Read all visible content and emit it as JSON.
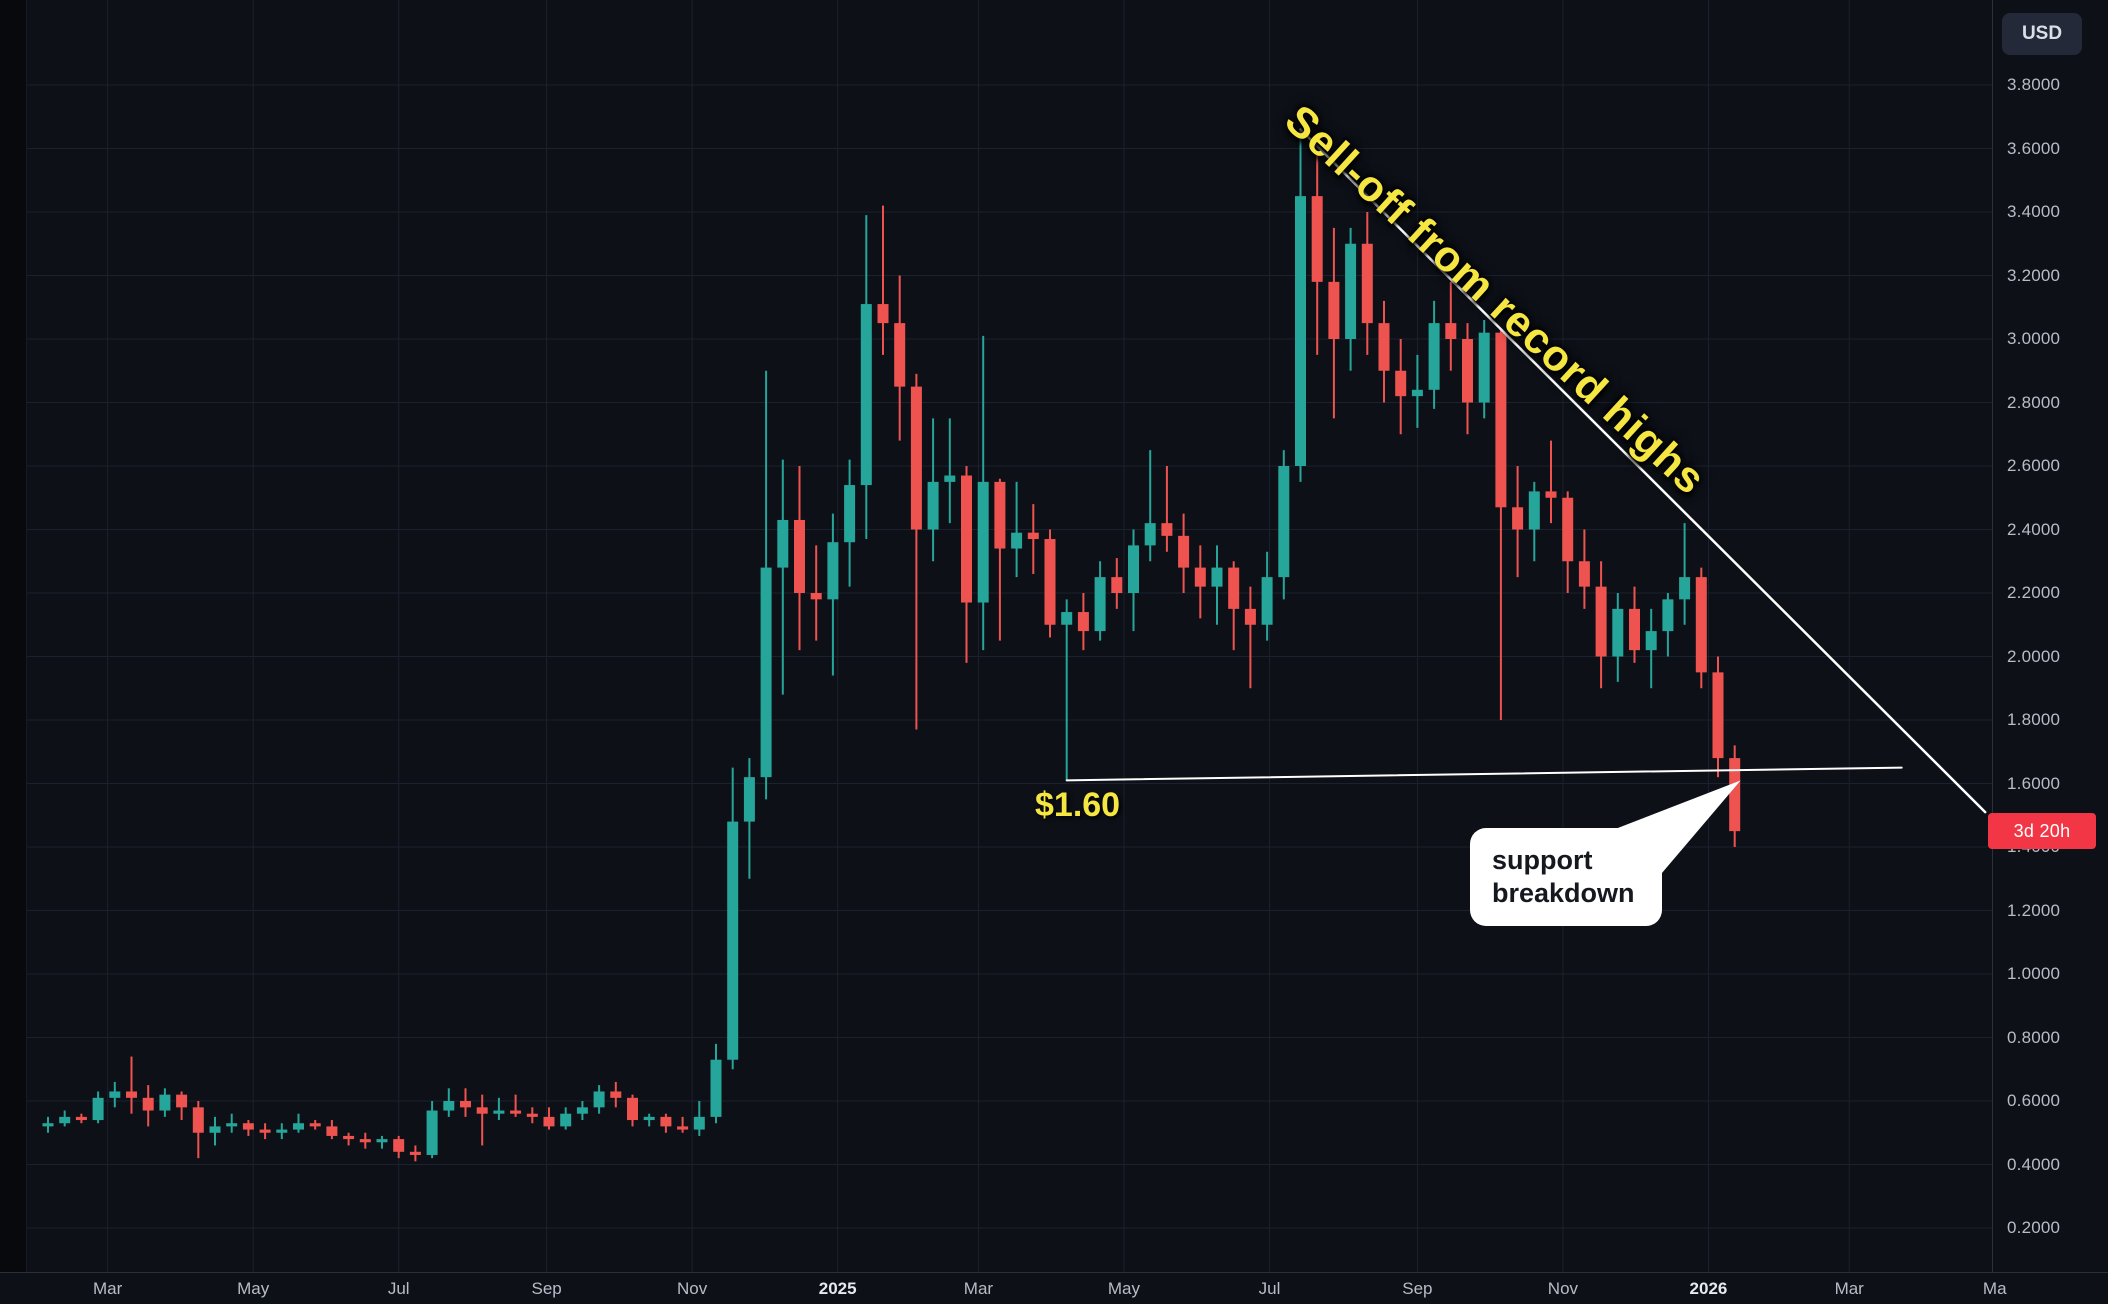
{
  "colors": {
    "background": "#0d1017",
    "grid": "#1b212e",
    "up": "#26a69a",
    "down": "#ef5350",
    "drawing_line": "#ffffff",
    "annotation_yellow": "#f5e642",
    "badge_red": "#f23645",
    "axis_text": "#b7bcc8",
    "callout_bg": "#ffffff",
    "callout_text": "#15181e"
  },
  "price_axis": {
    "currency_button": "USD",
    "labels": [
      "3.8000",
      "3.6000",
      "3.4000",
      "3.2000",
      "3.0000",
      "2.8000",
      "2.6000",
      "2.4000",
      "2.2000",
      "2.0000",
      "1.8000",
      "1.6000",
      "1.4000",
      "1.2000",
      "1.0000",
      "0.8000",
      "0.6000",
      "0.4000",
      "0.2000"
    ],
    "countdown_badge": {
      "text": "3d 20h",
      "price": 1.45
    }
  },
  "time_axis": {
    "labels": [
      {
        "text": "Mar",
        "date": "2024-03-01"
      },
      {
        "text": "May",
        "date": "2024-05-01"
      },
      {
        "text": "Jul",
        "date": "2024-07-01"
      },
      {
        "text": "Sep",
        "date": "2024-09-01"
      },
      {
        "text": "Nov",
        "date": "2024-11-01"
      },
      {
        "text": "2025",
        "date": "2025-01-01",
        "emphasis": true
      },
      {
        "text": "Mar",
        "date": "2025-03-01"
      },
      {
        "text": "May",
        "date": "2025-05-01"
      },
      {
        "text": "Jul",
        "date": "2025-07-01"
      },
      {
        "text": "Sep",
        "date": "2025-09-01"
      },
      {
        "text": "Nov",
        "date": "2025-11-01"
      },
      {
        "text": "2026",
        "date": "2026-01-01",
        "emphasis": true
      },
      {
        "text": "Mar",
        "date": "2026-03-01"
      },
      {
        "text": "Ma",
        "date": "2026-05-01"
      }
    ]
  },
  "annotations": {
    "selloff": {
      "text": "Sell-off from record highs",
      "color": "#f5e642"
    },
    "support_label": {
      "text": "$1.60",
      "color": "#f5e642"
    },
    "callout": {
      "line1": "support",
      "line2": "breakdown"
    }
  },
  "chart_data": {
    "type": "candlestick",
    "currency": "USD",
    "interval": "weekly",
    "start_date": "2024-02-05",
    "interval_days": 7,
    "visible_price_range": [
      0.2,
      3.8
    ],
    "candle_format": [
      "date",
      "open",
      "high",
      "low",
      "close"
    ],
    "candles": [
      [
        "2024-02-05",
        0.52,
        0.55,
        0.5,
        0.53
      ],
      [
        "2024-02-12",
        0.53,
        0.57,
        0.52,
        0.55
      ],
      [
        "2024-02-19",
        0.55,
        0.56,
        0.53,
        0.54
      ],
      [
        "2024-02-26",
        0.54,
        0.63,
        0.53,
        0.61
      ],
      [
        "2024-03-04",
        0.61,
        0.66,
        0.58,
        0.63
      ],
      [
        "2024-03-11",
        0.63,
        0.74,
        0.56,
        0.61
      ],
      [
        "2024-03-18",
        0.61,
        0.65,
        0.52,
        0.57
      ],
      [
        "2024-03-25",
        0.57,
        0.64,
        0.55,
        0.62
      ],
      [
        "2024-04-01",
        0.62,
        0.63,
        0.54,
        0.58
      ],
      [
        "2024-04-08",
        0.58,
        0.6,
        0.42,
        0.5
      ],
      [
        "2024-04-15",
        0.5,
        0.55,
        0.46,
        0.52
      ],
      [
        "2024-04-22",
        0.52,
        0.56,
        0.5,
        0.53
      ],
      [
        "2024-04-29",
        0.53,
        0.54,
        0.49,
        0.51
      ],
      [
        "2024-05-06",
        0.51,
        0.53,
        0.48,
        0.5
      ],
      [
        "2024-05-13",
        0.5,
        0.53,
        0.48,
        0.51
      ],
      [
        "2024-05-20",
        0.51,
        0.56,
        0.5,
        0.53
      ],
      [
        "2024-05-27",
        0.53,
        0.54,
        0.51,
        0.52
      ],
      [
        "2024-06-03",
        0.52,
        0.54,
        0.48,
        0.49
      ],
      [
        "2024-06-10",
        0.49,
        0.5,
        0.46,
        0.48
      ],
      [
        "2024-06-17",
        0.48,
        0.5,
        0.45,
        0.47
      ],
      [
        "2024-06-24",
        0.47,
        0.49,
        0.45,
        0.48
      ],
      [
        "2024-07-01",
        0.48,
        0.49,
        0.42,
        0.44
      ],
      [
        "2024-07-08",
        0.44,
        0.46,
        0.41,
        0.43
      ],
      [
        "2024-07-15",
        0.43,
        0.6,
        0.42,
        0.57
      ],
      [
        "2024-07-22",
        0.57,
        0.64,
        0.55,
        0.6
      ],
      [
        "2024-07-29",
        0.6,
        0.64,
        0.55,
        0.58
      ],
      [
        "2024-08-05",
        0.58,
        0.62,
        0.46,
        0.56
      ],
      [
        "2024-08-12",
        0.56,
        0.61,
        0.54,
        0.57
      ],
      [
        "2024-08-19",
        0.57,
        0.62,
        0.55,
        0.56
      ],
      [
        "2024-08-26",
        0.56,
        0.58,
        0.53,
        0.55
      ],
      [
        "2024-09-02",
        0.55,
        0.58,
        0.51,
        0.52
      ],
      [
        "2024-09-09",
        0.52,
        0.58,
        0.51,
        0.56
      ],
      [
        "2024-09-16",
        0.56,
        0.6,
        0.54,
        0.58
      ],
      [
        "2024-09-23",
        0.58,
        0.65,
        0.56,
        0.63
      ],
      [
        "2024-09-30",
        0.63,
        0.66,
        0.58,
        0.61
      ],
      [
        "2024-10-07",
        0.61,
        0.62,
        0.52,
        0.54
      ],
      [
        "2024-10-14",
        0.54,
        0.56,
        0.52,
        0.55
      ],
      [
        "2024-10-21",
        0.55,
        0.56,
        0.5,
        0.52
      ],
      [
        "2024-10-28",
        0.52,
        0.55,
        0.5,
        0.51
      ],
      [
        "2024-11-04",
        0.51,
        0.6,
        0.49,
        0.55
      ],
      [
        "2024-11-11",
        0.55,
        0.78,
        0.53,
        0.73
      ],
      [
        "2024-11-18",
        0.73,
        1.65,
        0.7,
        1.48
      ],
      [
        "2024-11-25",
        1.48,
        1.68,
        1.3,
        1.62
      ],
      [
        "2024-12-02",
        1.62,
        2.9,
        1.55,
        2.28
      ],
      [
        "2024-12-09",
        2.28,
        2.62,
        1.88,
        2.43
      ],
      [
        "2024-12-16",
        2.43,
        2.6,
        2.02,
        2.2
      ],
      [
        "2024-12-23",
        2.2,
        2.35,
        2.05,
        2.18
      ],
      [
        "2024-12-30",
        2.18,
        2.45,
        1.94,
        2.36
      ],
      [
        "2025-01-06",
        2.36,
        2.62,
        2.22,
        2.54
      ],
      [
        "2025-01-13",
        2.54,
        3.39,
        2.37,
        3.11
      ],
      [
        "2025-01-20",
        3.11,
        3.42,
        2.95,
        3.05
      ],
      [
        "2025-01-27",
        3.05,
        3.2,
        2.68,
        2.85
      ],
      [
        "2025-02-03",
        2.85,
        2.89,
        1.77,
        2.4
      ],
      [
        "2025-02-10",
        2.4,
        2.75,
        2.3,
        2.55
      ],
      [
        "2025-02-17",
        2.55,
        2.75,
        2.42,
        2.57
      ],
      [
        "2025-02-24",
        2.57,
        2.6,
        1.98,
        2.17
      ],
      [
        "2025-03-03",
        2.17,
        3.01,
        2.02,
        2.55
      ],
      [
        "2025-03-10",
        2.55,
        2.56,
        2.05,
        2.34
      ],
      [
        "2025-03-17",
        2.34,
        2.55,
        2.25,
        2.39
      ],
      [
        "2025-03-24",
        2.39,
        2.48,
        2.26,
        2.37
      ],
      [
        "2025-03-31",
        2.37,
        2.4,
        2.06,
        2.1
      ],
      [
        "2025-04-07",
        2.1,
        2.18,
        1.61,
        2.14
      ],
      [
        "2025-04-14",
        2.14,
        2.2,
        2.02,
        2.08
      ],
      [
        "2025-04-21",
        2.08,
        2.3,
        2.05,
        2.25
      ],
      [
        "2025-04-28",
        2.25,
        2.31,
        2.15,
        2.2
      ],
      [
        "2025-05-05",
        2.2,
        2.4,
        2.08,
        2.35
      ],
      [
        "2025-05-12",
        2.35,
        2.65,
        2.3,
        2.42
      ],
      [
        "2025-05-19",
        2.42,
        2.6,
        2.33,
        2.38
      ],
      [
        "2025-05-26",
        2.38,
        2.45,
        2.2,
        2.28
      ],
      [
        "2025-06-02",
        2.28,
        2.35,
        2.12,
        2.22
      ],
      [
        "2025-06-09",
        2.22,
        2.35,
        2.1,
        2.28
      ],
      [
        "2025-06-16",
        2.28,
        2.3,
        2.02,
        2.15
      ],
      [
        "2025-06-23",
        2.15,
        2.22,
        1.9,
        2.1
      ],
      [
        "2025-06-30",
        2.1,
        2.33,
        2.05,
        2.25
      ],
      [
        "2025-07-07",
        2.25,
        2.65,
        2.18,
        2.6
      ],
      [
        "2025-07-14",
        2.6,
        3.66,
        2.55,
        3.45
      ],
      [
        "2025-07-21",
        3.45,
        3.59,
        2.95,
        3.18
      ],
      [
        "2025-07-28",
        3.18,
        3.35,
        2.75,
        3.0
      ],
      [
        "2025-08-04",
        3.0,
        3.35,
        2.9,
        3.3
      ],
      [
        "2025-08-11",
        3.3,
        3.4,
        2.95,
        3.05
      ],
      [
        "2025-08-18",
        3.05,
        3.12,
        2.8,
        2.9
      ],
      [
        "2025-08-25",
        2.9,
        3.0,
        2.7,
        2.82
      ],
      [
        "2025-09-01",
        2.82,
        2.95,
        2.72,
        2.84
      ],
      [
        "2025-09-08",
        2.84,
        3.12,
        2.78,
        3.05
      ],
      [
        "2025-09-15",
        3.05,
        3.18,
        2.9,
        3.0
      ],
      [
        "2025-09-22",
        3.0,
        3.05,
        2.7,
        2.8
      ],
      [
        "2025-09-29",
        2.8,
        3.06,
        2.75,
        3.02
      ],
      [
        "2025-10-06",
        3.02,
        3.03,
        1.8,
        2.47
      ],
      [
        "2025-10-13",
        2.47,
        2.6,
        2.25,
        2.4
      ],
      [
        "2025-10-20",
        2.4,
        2.55,
        2.3,
        2.52
      ],
      [
        "2025-10-27",
        2.52,
        2.68,
        2.42,
        2.5
      ],
      [
        "2025-11-03",
        2.5,
        2.52,
        2.2,
        2.3
      ],
      [
        "2025-11-10",
        2.3,
        2.4,
        2.15,
        2.22
      ],
      [
        "2025-11-17",
        2.22,
        2.3,
        1.9,
        2.0
      ],
      [
        "2025-11-24",
        2.0,
        2.2,
        1.92,
        2.15
      ],
      [
        "2025-12-01",
        2.15,
        2.22,
        1.98,
        2.02
      ],
      [
        "2025-12-08",
        2.02,
        2.15,
        1.9,
        2.08
      ],
      [
        "2025-12-15",
        2.08,
        2.2,
        2.0,
        2.18
      ],
      [
        "2025-12-22",
        2.18,
        2.42,
        2.1,
        2.25
      ],
      [
        "2025-12-29",
        2.25,
        2.28,
        1.9,
        1.95
      ],
      [
        "2026-01-05",
        1.95,
        2.0,
        1.62,
        1.68
      ],
      [
        "2026-01-12",
        1.68,
        1.72,
        1.4,
        1.45
      ]
    ],
    "drawings": {
      "downtrend_line": {
        "from": {
          "date": "2025-07-14",
          "price": 3.66
        },
        "to": {
          "date": "2026-04-27",
          "price": 1.51
        }
      },
      "support_line": {
        "from": {
          "date": "2025-04-07",
          "price": 1.61
        },
        "to": {
          "date": "2026-03-23",
          "price": 1.65
        }
      },
      "callout_target": {
        "date": "2026-01-12",
        "price": 1.61
      }
    }
  }
}
